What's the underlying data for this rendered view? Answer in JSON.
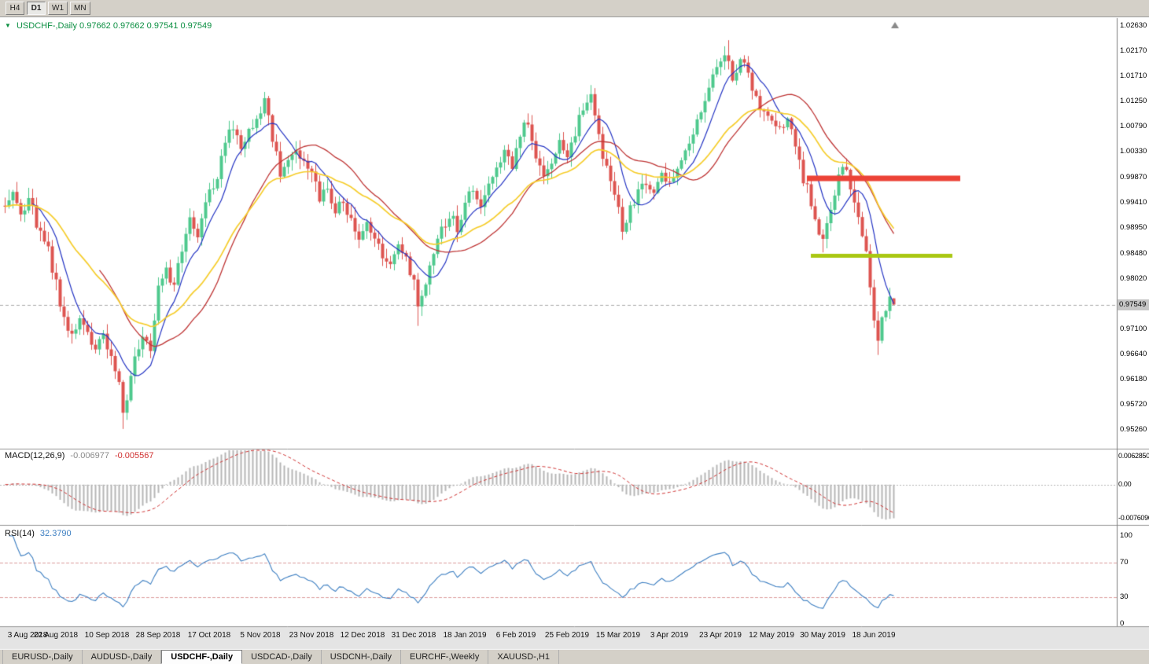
{
  "toolbar": {
    "buttons": [
      {
        "label": "H4",
        "active": false
      },
      {
        "label": "D1",
        "active": true
      },
      {
        "label": "W1",
        "active": false
      },
      {
        "label": "MN",
        "active": false
      }
    ]
  },
  "tabs": [
    {
      "label": "EURUSD-,Daily",
      "active": false
    },
    {
      "label": "AUDUSD-,Daily",
      "active": false
    },
    {
      "label": "USDCHF-,Daily",
      "active": true
    },
    {
      "label": "USDCAD-,Daily",
      "active": false
    },
    {
      "label": "USDCNH-,Daily",
      "active": false
    },
    {
      "label": "EURCHF-,Weekly",
      "active": false
    },
    {
      "label": "XAUUSD-,H1",
      "active": false
    }
  ],
  "colors": {
    "chrome_bg": "#d4d0c8",
    "panel_bg": "#ffffff",
    "date_strip_bg": "#e4e4e4",
    "separator": "#949494",
    "title_text": "#0c8f42",
    "bull": "#4ec98d",
    "bear": "#dd5450",
    "ma_fast": "#2434c4",
    "ma_mid": "#bf3535",
    "ma_slow": "#f6cd2b",
    "macd_hist": "#b6b6b6",
    "macd_signal": "#d03030",
    "macd_value_main_text": "#8a8a8a",
    "rsi_line": "#3d7fc2",
    "rsi_level": "#dc9c9c",
    "resistance": "#ec4337",
    "support": "#a9c713",
    "price_line": "#a8a8a8",
    "badge_bg": "#c6c6c6"
  },
  "chart_data": {
    "type": "candlestick_with_indicators",
    "symbol": "USDCHF-,Daily",
    "title_text": "USDCHF-,Daily  0.97662 0.97662 0.97541 0.97549",
    "ohlc": {
      "open": "0.97662",
      "high": "0.97662",
      "low": "0.97541",
      "close": "0.97549"
    },
    "x_labels": [
      {
        "day": 0,
        "label": "3 Aug 2018"
      },
      {
        "day": 13,
        "label": "22 Aug 2018"
      },
      {
        "day": 26,
        "label": "10 Sep 2018"
      },
      {
        "day": 39,
        "label": "28 Sep 2018"
      },
      {
        "day": 52,
        "label": "17 Oct 2018"
      },
      {
        "day": 65,
        "label": "5 Nov 2018"
      },
      {
        "day": 78,
        "label": "23 Nov 2018"
      },
      {
        "day": 91,
        "label": "12 Dec 2018"
      },
      {
        "day": 104,
        "label": "31 Dec 2018"
      },
      {
        "day": 117,
        "label": "18 Jan 2019"
      },
      {
        "day": 130,
        "label": "6 Feb 2019"
      },
      {
        "day": 143,
        "label": "25 Feb 2019"
      },
      {
        "day": 156,
        "label": "15 Mar 2019"
      },
      {
        "day": 169,
        "label": "3 Apr 2019"
      },
      {
        "day": 182,
        "label": "23 Apr 2019"
      },
      {
        "day": 195,
        "label": "12 May 2019"
      },
      {
        "day": 208,
        "label": "30 May 2019"
      },
      {
        "day": 221,
        "label": "18 Jun 2019"
      }
    ],
    "main": {
      "y_tick_labels": [
        "1.02630",
        "1.02170",
        "1.01710",
        "1.01250",
        "1.00790",
        "1.00330",
        "0.99870",
        "0.99410",
        "0.98950",
        "0.98480",
        "0.98020",
        "0.97100",
        "0.96640",
        "0.96180",
        "0.95720",
        "0.95260"
      ],
      "current_price": 0.97549,
      "current_price_label": "0.97549",
      "num_days": 227,
      "close_anchors": [
        [
          0,
          0.9938
        ],
        [
          2,
          0.9952
        ],
        [
          4,
          0.9925
        ],
        [
          6,
          0.9945
        ],
        [
          8,
          0.9905
        ],
        [
          11,
          0.9858
        ],
        [
          13,
          0.979
        ],
        [
          15,
          0.9722
        ],
        [
          17,
          0.9698
        ],
        [
          19,
          0.974
        ],
        [
          21,
          0.9702
        ],
        [
          23,
          0.9672
        ],
        [
          25,
          0.9702
        ],
        [
          27,
          0.9655
        ],
        [
          29,
          0.9608
        ],
        [
          30,
          0.9548
        ],
        [
          31,
          0.9585
        ],
        [
          33,
          0.9662
        ],
        [
          35,
          0.9705
        ],
        [
          37,
          0.9668
        ],
        [
          39,
          0.9788
        ],
        [
          41,
          0.9825
        ],
        [
          43,
          0.9782
        ],
        [
          45,
          0.9858
        ],
        [
          47,
          0.9905
        ],
        [
          49,
          0.9885
        ],
        [
          52,
          0.9958
        ],
        [
          54,
          0.9992
        ],
        [
          56,
          1.0052
        ],
        [
          58,
          1.0078
        ],
        [
          60,
          1.004
        ],
        [
          62,
          1.0068
        ],
        [
          64,
          1.0095
        ],
        [
          66,
          1.0122
        ],
        [
          68,
          1.0058
        ],
        [
          70,
          0.9992
        ],
        [
          72,
          1.0015
        ],
        [
          74,
          1.0038
        ],
        [
          76,
          1.001
        ],
        [
          78,
          0.9988
        ],
        [
          80,
          0.995
        ],
        [
          82,
          0.9965
        ],
        [
          84,
          0.993
        ],
        [
          86,
          0.995
        ],
        [
          88,
          0.9905
        ],
        [
          90,
          0.988
        ],
        [
          92,
          0.9912
        ],
        [
          94,
          0.987
        ],
        [
          96,
          0.985
        ],
        [
          98,
          0.9828
        ],
        [
          100,
          0.9862
        ],
        [
          102,
          0.984
        ],
        [
          104,
          0.9798
        ],
        [
          105,
          0.9745
        ],
        [
          107,
          0.9788
        ],
        [
          109,
          0.9845
        ],
        [
          111,
          0.9888
        ],
        [
          113,
          0.9918
        ],
        [
          115,
          0.9898
        ],
        [
          117,
          0.994
        ],
        [
          119,
          0.9962
        ],
        [
          121,
          0.993
        ],
        [
          123,
          0.9972
        ],
        [
          125,
          1.0002
        ],
        [
          127,
          1.0042
        ],
        [
          129,
          1.0012
        ],
        [
          131,
          1.0068
        ],
        [
          133,
          1.0088
        ],
        [
          135,
          1.0028
        ],
        [
          137,
          0.9998
        ],
        [
          139,
          1.0012
        ],
        [
          141,
          1.0058
        ],
        [
          143,
          1.0028
        ],
        [
          145,
          1.0072
        ],
        [
          147,
          1.0108
        ],
        [
          149,
          1.0132
        ],
        [
          151,
          1.0058
        ],
        [
          153,
          1.0
        ],
        [
          155,
          0.9952
        ],
        [
          157,
          0.9892
        ],
        [
          159,
          0.9928
        ],
        [
          161,
          0.9958
        ],
        [
          163,
          0.9975
        ],
        [
          165,
          0.9948
        ],
        [
          167,
          0.9998
        ],
        [
          169,
          0.9982
        ],
        [
          171,
          1.0005
        ],
        [
          173,
          1.0032
        ],
        [
          175,
          1.0068
        ],
        [
          177,
          1.0108
        ],
        [
          179,
          1.0148
        ],
        [
          181,
          1.0188
        ],
        [
          183,
          1.0218
        ],
        [
          185,
          1.0165
        ],
        [
          187,
          1.0198
        ],
        [
          189,
          1.0178
        ],
        [
          191,
          1.0128
        ],
        [
          193,
          1.0105
        ],
        [
          195,
          1.0098
        ],
        [
          197,
          1.0068
        ],
        [
          199,
          1.0088
        ],
        [
          201,
          1.0042
        ],
        [
          203,
          0.9985
        ],
        [
          205,
          0.9942
        ],
        [
          207,
          0.9892
        ],
        [
          208,
          0.9868
        ],
        [
          210,
          0.9928
        ],
        [
          212,
          0.9985
        ],
        [
          214,
          1.0008
        ],
        [
          215,
          0.9972
        ],
        [
          217,
          0.9918
        ],
        [
          219,
          0.9852
        ],
        [
          220,
          0.9795
        ],
        [
          221,
          0.9732
        ],
        [
          222,
          0.969
        ],
        [
          223,
          0.9725
        ],
        [
          224,
          0.9748
        ],
        [
          225,
          0.9772
        ],
        [
          226,
          0.9755
        ]
      ],
      "wick_overrides": [
        {
          "day": 30,
          "low": 0.9528
        },
        {
          "day": 66,
          "high": 1.0142
        },
        {
          "day": 105,
          "low": 0.9716
        },
        {
          "day": 149,
          "high": 1.0152
        },
        {
          "day": 184,
          "high": 1.0237
        },
        {
          "day": 208,
          "low": 0.985
        },
        {
          "day": 222,
          "low": 0.9663
        }
      ],
      "last_candle": {
        "open": 0.97662,
        "high": 0.97662,
        "low": 0.97541,
        "close": 0.97549
      },
      "moving_averages": [
        {
          "type": "sma",
          "period": 8,
          "color_key": "ma_fast"
        },
        {
          "type": "sma",
          "period": 25,
          "color_key": "ma_mid"
        },
        {
          "type": "ema",
          "period": 30,
          "color_key": "ma_slow"
        }
      ],
      "levels": {
        "resistance": {
          "price": 0.9985,
          "day_start": 204,
          "day_end": 243
        },
        "support": {
          "price": 0.9844,
          "day_start": 205,
          "day_end": 241
        }
      }
    },
    "macd": {
      "label": "MACD(12,26,9)",
      "value_main": "-0.006977",
      "value_signal": "-0.005567",
      "fast": 12,
      "slow": 26,
      "signal": 9,
      "y_tick_labels": [
        "0.0062850",
        "0.00",
        "-0.0076090"
      ]
    },
    "rsi": {
      "label": "RSI(14)",
      "value": "32.3790",
      "period": 14,
      "levels": [
        70,
        30
      ],
      "y_tick_labels": [
        "100",
        "70",
        "30",
        "0"
      ]
    }
  }
}
